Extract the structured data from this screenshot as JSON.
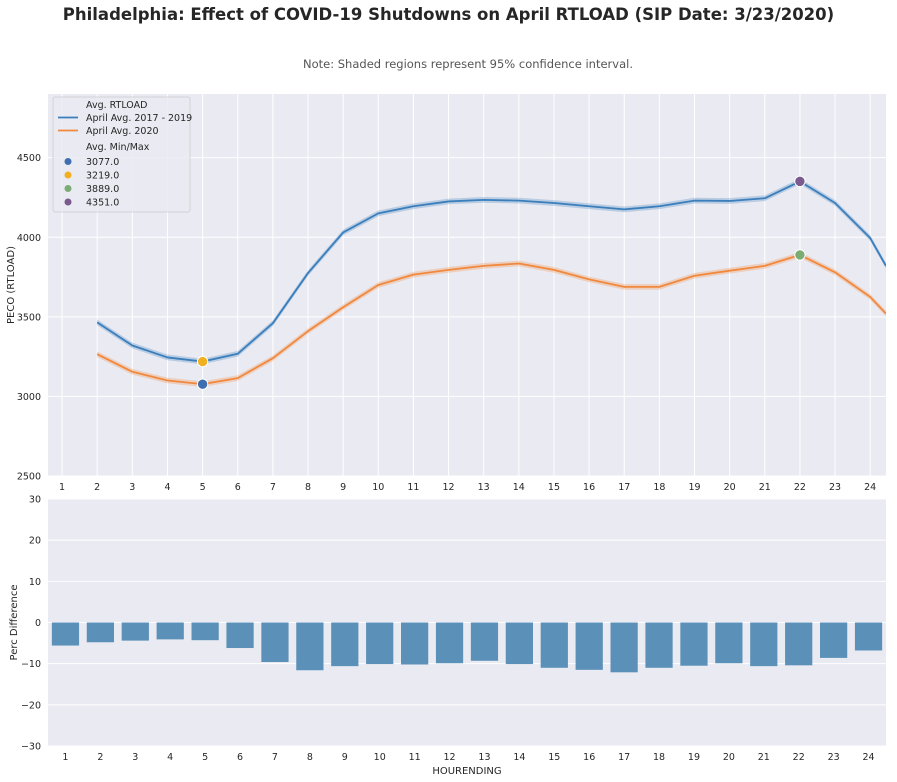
{
  "title": "Philadelphia: Effect of COVID-19 Shutdowns on April RTLOAD (SIP Date: 3/23/2020)",
  "note": "Note: Shaded regions represent 95% confidence interval.",
  "colors": {
    "background": "#eaeaf2",
    "grid": "#ffffff",
    "series_2017_2019": "#3a7ebc",
    "series_2020": "#f0883e",
    "bars": "#5b91b8",
    "marker_min_2020": "#3f6fb0",
    "marker_min_hist": "#f0b020",
    "marker_max_2020": "#7aac74",
    "marker_max_hist": "#7b5a8e"
  },
  "chart_data": [
    {
      "type": "line",
      "ylabel": "PECO (RTLOAD)",
      "xlabel": "",
      "ylim": [
        2500,
        4900
      ],
      "xlim": [
        0.6,
        24.45
      ],
      "xticks": [
        "1",
        "2",
        "3",
        "4",
        "5",
        "6",
        "7",
        "8",
        "9",
        "10",
        "11",
        "12",
        "13",
        "14",
        "15",
        "16",
        "17",
        "18",
        "19",
        "20",
        "21",
        "22",
        "23",
        "24"
      ],
      "yticks": [
        "2500",
        "3000",
        "3500",
        "4000",
        "4500"
      ],
      "ytick_values": [
        2500,
        3000,
        3500,
        4000,
        4500
      ],
      "x": [
        2,
        3,
        4,
        5,
        6,
        7,
        8,
        9,
        10,
        11,
        12,
        13,
        14,
        15,
        16,
        17,
        18,
        19,
        20,
        21,
        22,
        23,
        24,
        24.45
      ],
      "series": [
        {
          "name": "April Avg. 2017 - 2019",
          "values": [
            3465,
            3320,
            3245,
            3219,
            3268,
            3460,
            3775,
            4030,
            4150,
            4195,
            4225,
            4235,
            4230,
            4215,
            4195,
            4175,
            4195,
            4230,
            4228,
            4245,
            4351,
            4215,
            3995,
            3820
          ],
          "ci": 18
        },
        {
          "name": "April Avg. 2020",
          "values": [
            3265,
            3155,
            3100,
            3077,
            3115,
            3240,
            3410,
            3560,
            3700,
            3765,
            3795,
            3820,
            3835,
            3795,
            3735,
            3688,
            3688,
            3758,
            3790,
            3820,
            3889,
            3780,
            3625,
            3520
          ],
          "ci": 18
        }
      ],
      "points": [
        {
          "label": "3077.0",
          "x": 5,
          "y": 3077
        },
        {
          "label": "3219.0",
          "x": 5,
          "y": 3219
        },
        {
          "label": "3889.0",
          "x": 22,
          "y": 3889
        },
        {
          "label": "4351.0",
          "x": 22,
          "y": 4351
        }
      ],
      "legend": {
        "placement": "upper-left",
        "line_header": "Avg. RTLOAD",
        "line_entries": [
          "April Avg. 2017 - 2019",
          "April Avg. 2020"
        ],
        "point_header": "Avg. Min/Max",
        "point_entries": [
          "3077.0",
          "3219.0",
          "3889.0",
          "4351.0"
        ]
      },
      "grid": true
    },
    {
      "type": "bar",
      "ylabel": "Perc Difference",
      "xlabel": "HOURENDING",
      "ylim": [
        -30,
        30
      ],
      "categories": [
        "1",
        "2",
        "3",
        "4",
        "5",
        "6",
        "7",
        "8",
        "9",
        "10",
        "11",
        "12",
        "13",
        "14",
        "15",
        "16",
        "17",
        "18",
        "19",
        "20",
        "21",
        "22",
        "23",
        "24"
      ],
      "yticks": [
        "30",
        "20",
        "10",
        "0",
        "−10",
        "−20",
        "−30"
      ],
      "ytick_values": [
        30,
        20,
        10,
        0,
        -10,
        -20,
        -30
      ],
      "values": [
        -5.6,
        -4.8,
        -4.4,
        -4.1,
        -4.3,
        -6.2,
        -9.6,
        -11.6,
        -10.6,
        -10.1,
        -10.2,
        -9.9,
        -9.3,
        -10.1,
        -11.0,
        -11.5,
        -12.1,
        -11.0,
        -10.5,
        -9.9,
        -10.6,
        -10.4,
        -8.6,
        -6.8
      ],
      "grid": true
    }
  ]
}
